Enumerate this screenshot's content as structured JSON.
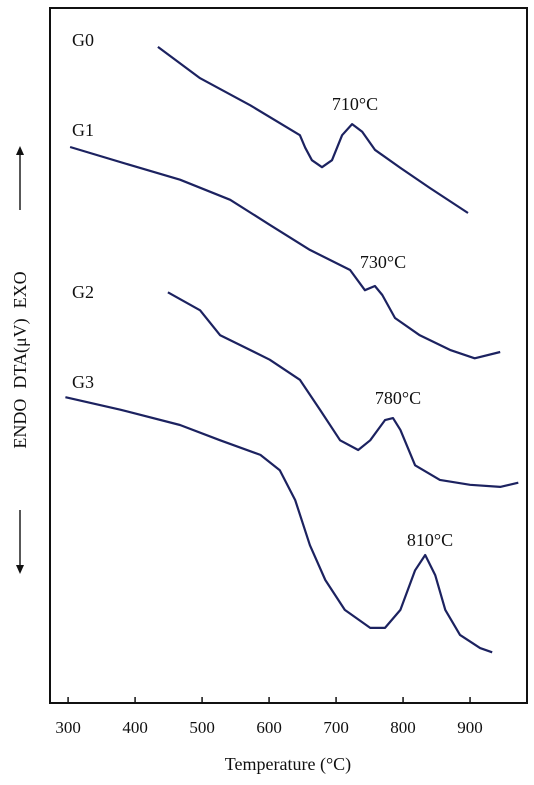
{
  "chart_data": {
    "type": "line",
    "x_label": "Temperature (°C)",
    "y_label": "DTA(μV)",
    "endo_label": "ENDO",
    "exo_label": "EXO",
    "xlim": [
      273,
      985
    ],
    "xticks": [
      300,
      400,
      500,
      600,
      700,
      800,
      900
    ],
    "ylim": [
      0,
      100
    ],
    "color": "#1c2260",
    "series": [
      {
        "name": "G0",
        "color": "#1c2260",
        "x": [
          434,
          497,
          572,
          646,
          654,
          664,
          679,
          694,
          709,
          724,
          739,
          758,
          796,
          840,
          897
        ],
        "values": [
          94.4,
          89.9,
          86.0,
          81.7,
          79.9,
          78.1,
          77.1,
          78.1,
          81.7,
          83.3,
          82.2,
          79.6,
          77.0,
          74.1,
          70.5
        ]
      },
      {
        "name": "G1",
        "color": "#1c2260",
        "x": [
          303,
          393,
          467,
          542,
          601,
          661,
          721,
          743,
          758,
          769,
          788,
          825,
          870,
          907,
          945
        ],
        "values": [
          80.0,
          77.4,
          75.3,
          72.4,
          68.8,
          65.2,
          62.3,
          59.4,
          60.0,
          58.7,
          55.4,
          52.9,
          50.8,
          49.6,
          50.5
        ]
      },
      {
        "name": "G2",
        "color": "#1c2260",
        "x": [
          449,
          497,
          527,
          557,
          601,
          646,
          676,
          706,
          733,
          751,
          773,
          785,
          796,
          818,
          855,
          900,
          945,
          972
        ],
        "values": [
          59.1,
          56.5,
          52.9,
          51.5,
          49.4,
          46.5,
          42.2,
          37.8,
          36.4,
          37.8,
          40.7,
          41.0,
          39.3,
          34.2,
          32.1,
          31.4,
          31.1,
          31.7
        ]
      },
      {
        "name": "G3",
        "color": "#1c2260",
        "x": [
          296,
          378,
          467,
          527,
          587,
          616,
          639,
          661,
          684,
          713,
          751,
          773,
          796,
          818,
          833,
          848,
          863,
          885,
          915,
          933
        ],
        "values": [
          44.0,
          42.2,
          40.0,
          37.8,
          35.7,
          33.5,
          29.2,
          22.7,
          17.7,
          13.4,
          10.8,
          10.8,
          13.4,
          19.1,
          21.3,
          18.4,
          13.4,
          9.8,
          7.9,
          7.3
        ]
      }
    ],
    "annotations": [
      "710°C",
      "730°C",
      "780°C",
      "810°C"
    ]
  }
}
